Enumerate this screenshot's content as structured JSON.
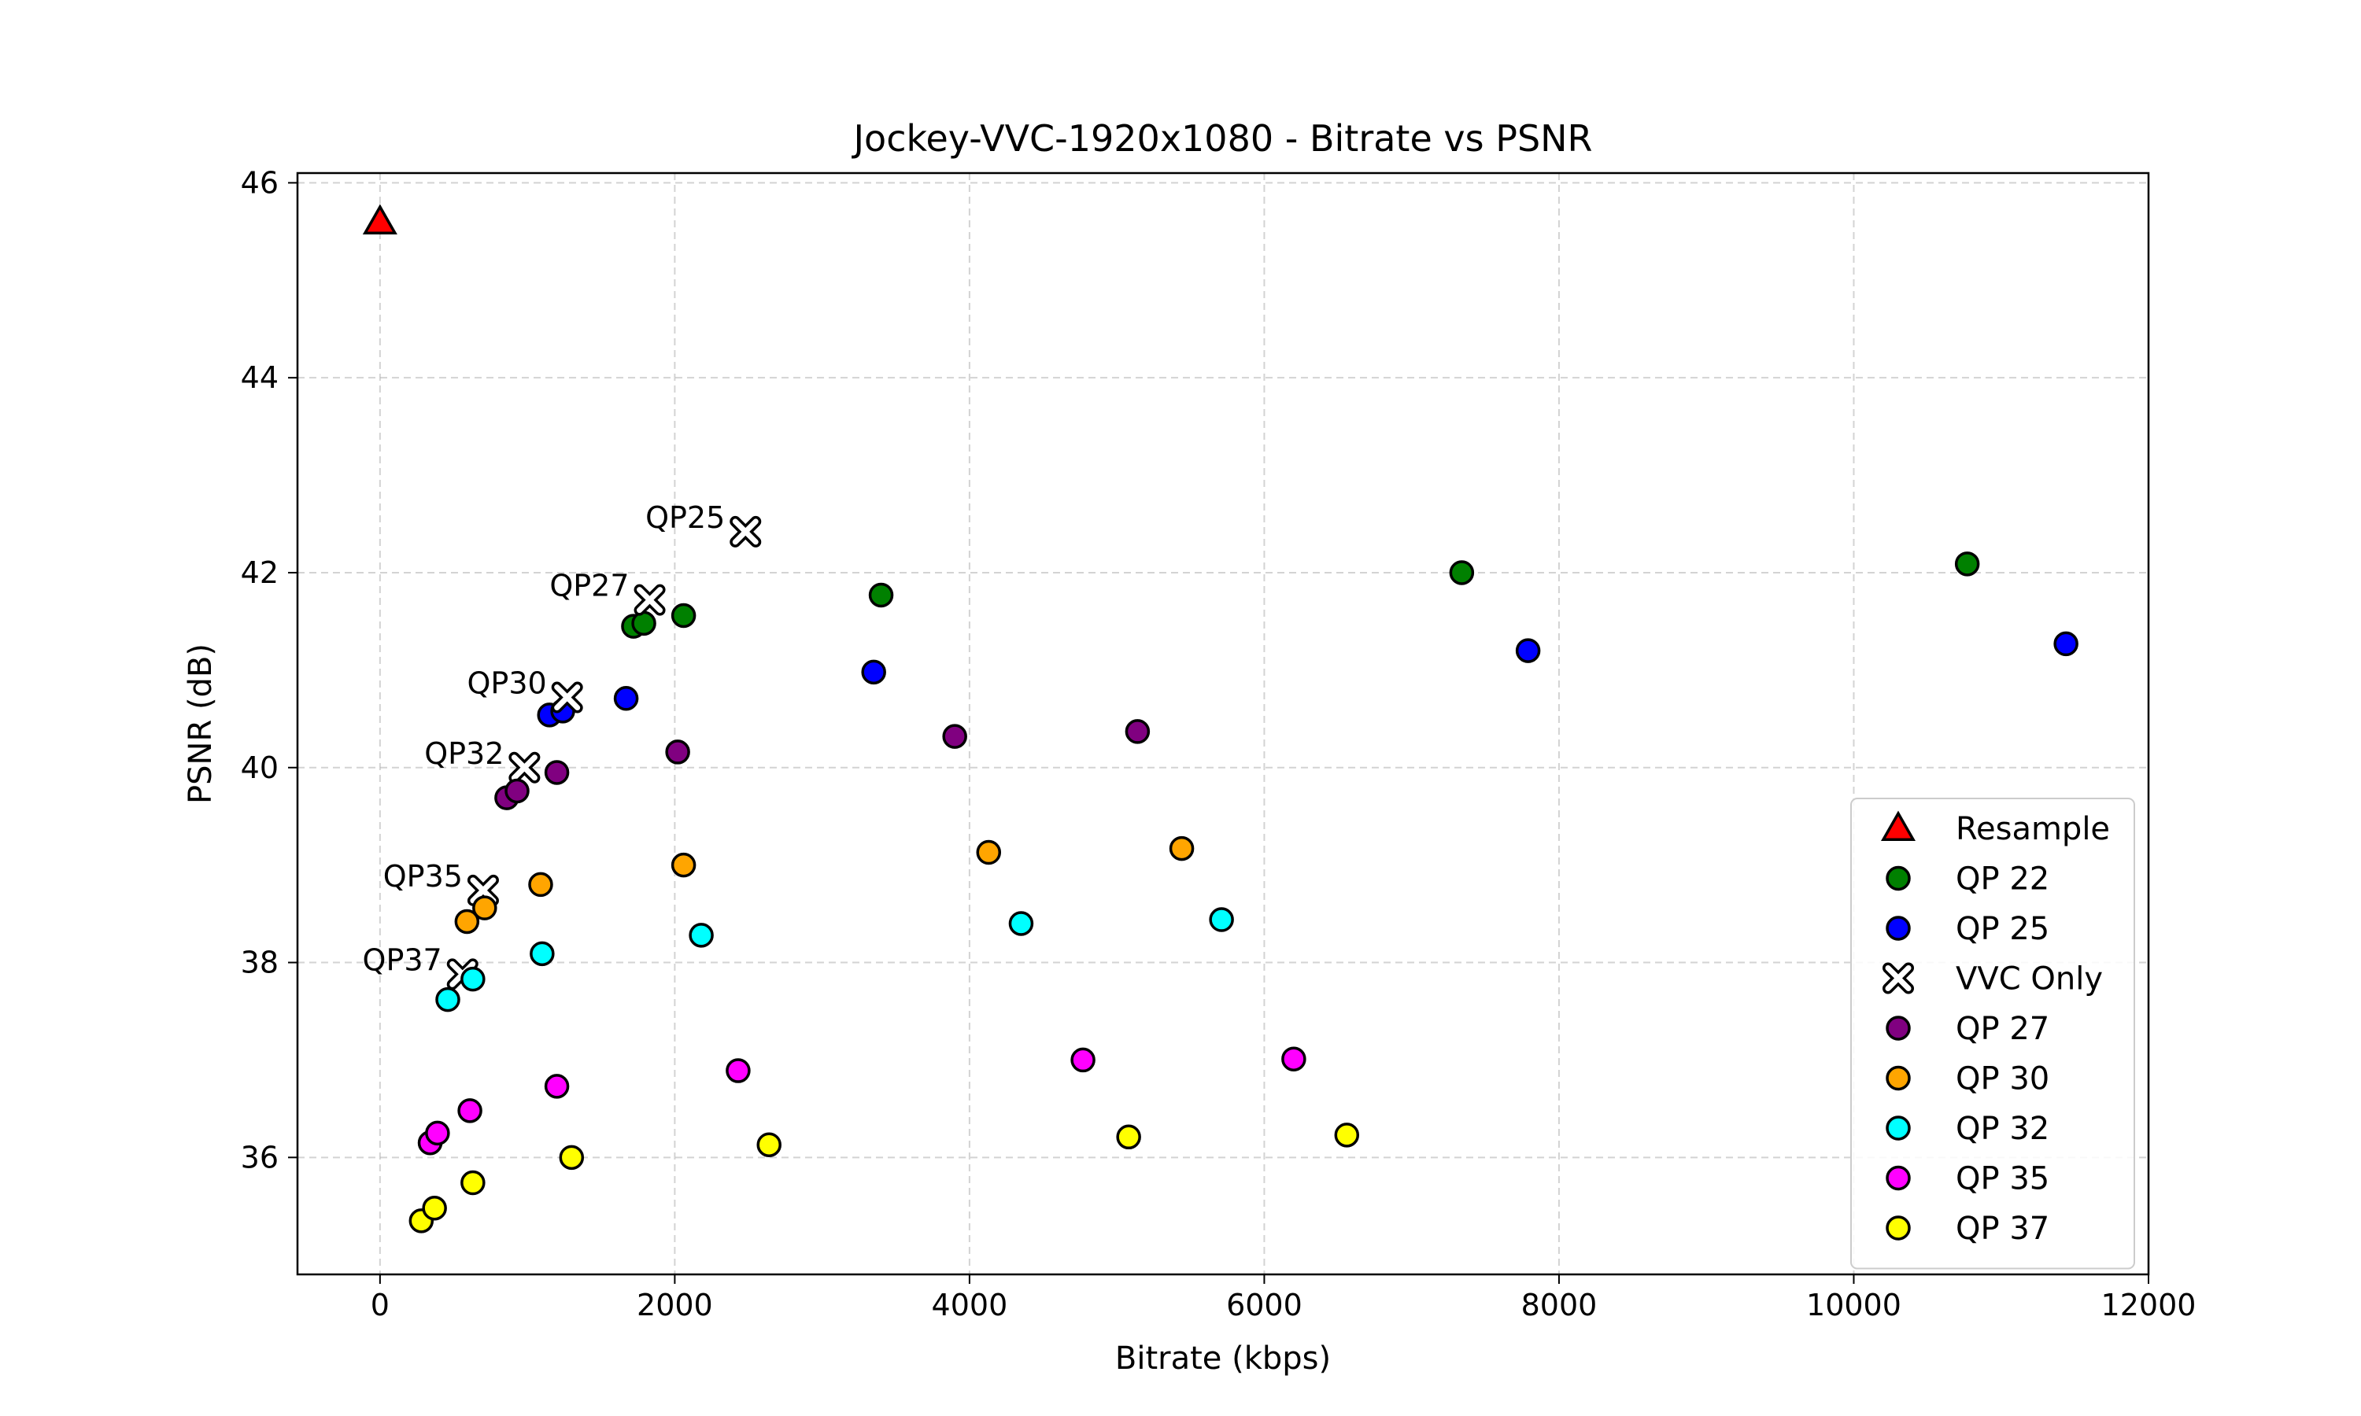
{
  "chart_data": {
    "type": "scatter",
    "title": "Jockey-VVC-1920x1080 - Bitrate vs PSNR",
    "xlabel": "Bitrate (kbps)",
    "ylabel": "PSNR (dB)",
    "xlim": [
      -560,
      12000
    ],
    "ylim": [
      34.8,
      46.1
    ],
    "xticks": [
      0,
      2000,
      4000,
      6000,
      8000,
      10000,
      12000
    ],
    "yticks": [
      36,
      38,
      40,
      42,
      44,
      46
    ],
    "grid": true,
    "legend_position": "lower-right",
    "series": [
      {
        "name": "Resample",
        "marker": "triangle",
        "color": "#ff0000",
        "points": [
          [
            0,
            45.6
          ]
        ]
      },
      {
        "name": "QP 22",
        "marker": "circle",
        "color": "#008000",
        "points": [
          [
            1720,
            41.45
          ],
          [
            1790,
            41.48
          ],
          [
            2060,
            41.56
          ],
          [
            3400,
            41.77
          ],
          [
            7340,
            42.0
          ],
          [
            10770,
            42.09
          ]
        ]
      },
      {
        "name": "QP 25",
        "marker": "circle",
        "color": "#0000ff",
        "points": [
          [
            1150,
            40.54
          ],
          [
            1240,
            40.58
          ],
          [
            1670,
            40.71
          ],
          [
            3350,
            40.98
          ],
          [
            7790,
            41.2
          ],
          [
            11440,
            41.27
          ]
        ]
      },
      {
        "name": "VVC Only",
        "marker": "x",
        "color": "#ffffff",
        "points": [
          [
            2480,
            42.42
          ],
          [
            1830,
            41.72
          ],
          [
            1270,
            40.72
          ],
          [
            980,
            40.0
          ],
          [
            700,
            38.74
          ],
          [
            560,
            37.88
          ]
        ],
        "labels": [
          "QP25",
          "QP27",
          "QP30",
          "QP32",
          "QP35",
          "QP37"
        ]
      },
      {
        "name": "QP 27",
        "marker": "circle",
        "color": "#800080",
        "points": [
          [
            860,
            39.69
          ],
          [
            930,
            39.76
          ],
          [
            1200,
            39.95
          ],
          [
            2020,
            40.16
          ],
          [
            3900,
            40.32
          ],
          [
            5140,
            40.37
          ]
        ]
      },
      {
        "name": "QP 30",
        "marker": "circle",
        "color": "#ffa500",
        "points": [
          [
            590,
            38.42
          ],
          [
            710,
            38.56
          ],
          [
            1090,
            38.8
          ],
          [
            2060,
            39.0
          ],
          [
            4130,
            39.13
          ],
          [
            5440,
            39.17
          ]
        ]
      },
      {
        "name": "QP 32",
        "marker": "circle",
        "color": "#00ffff",
        "points": [
          [
            460,
            37.62
          ],
          [
            630,
            37.83
          ],
          [
            1100,
            38.09
          ],
          [
            2180,
            38.28
          ],
          [
            4350,
            38.4
          ],
          [
            5710,
            38.44
          ]
        ]
      },
      {
        "name": "QP 35",
        "marker": "circle",
        "color": "#ff00ff",
        "points": [
          [
            340,
            36.15
          ],
          [
            390,
            36.25
          ],
          [
            610,
            36.48
          ],
          [
            1200,
            36.73
          ],
          [
            2430,
            36.89
          ],
          [
            4770,
            37.0
          ],
          [
            6200,
            37.01
          ]
        ]
      },
      {
        "name": "QP 37",
        "marker": "circle",
        "color": "#ffff00",
        "points": [
          [
            280,
            35.35
          ],
          [
            370,
            35.48
          ],
          [
            630,
            35.74
          ],
          [
            1300,
            36.0
          ],
          [
            2640,
            36.13
          ],
          [
            5080,
            36.21
          ],
          [
            6560,
            36.23
          ]
        ]
      }
    ]
  }
}
